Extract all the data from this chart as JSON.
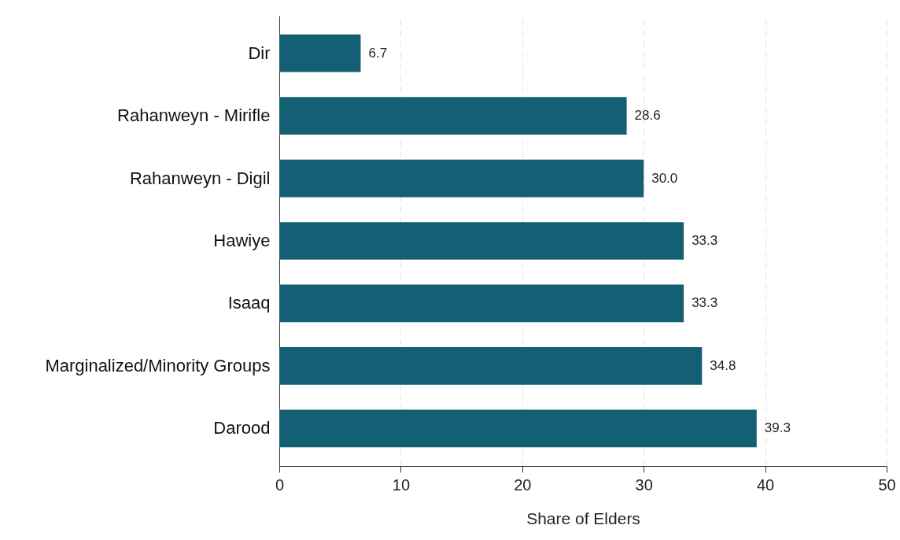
{
  "chart_data": {
    "type": "bar",
    "orientation": "horizontal",
    "xlabel": "Share of Elders",
    "categories": [
      "Dir",
      "Rahanweyn - Mirifle",
      "Rahanweyn - Digil",
      "Hawiye",
      "Isaaq",
      "Marginalized/Minority Groups",
      "Darood"
    ],
    "values": [
      6.7,
      28.6,
      30.0,
      33.3,
      33.3,
      34.8,
      39.3
    ],
    "color": "#135f73",
    "value_labels": [
      "6.7",
      "28.6",
      "30.0",
      "33.3",
      "33.3",
      "34.8",
      "39.3"
    ],
    "xlim": [
      0,
      50
    ],
    "xticks": [
      0,
      10,
      20,
      30,
      40,
      50
    ],
    "grid": "x"
  }
}
